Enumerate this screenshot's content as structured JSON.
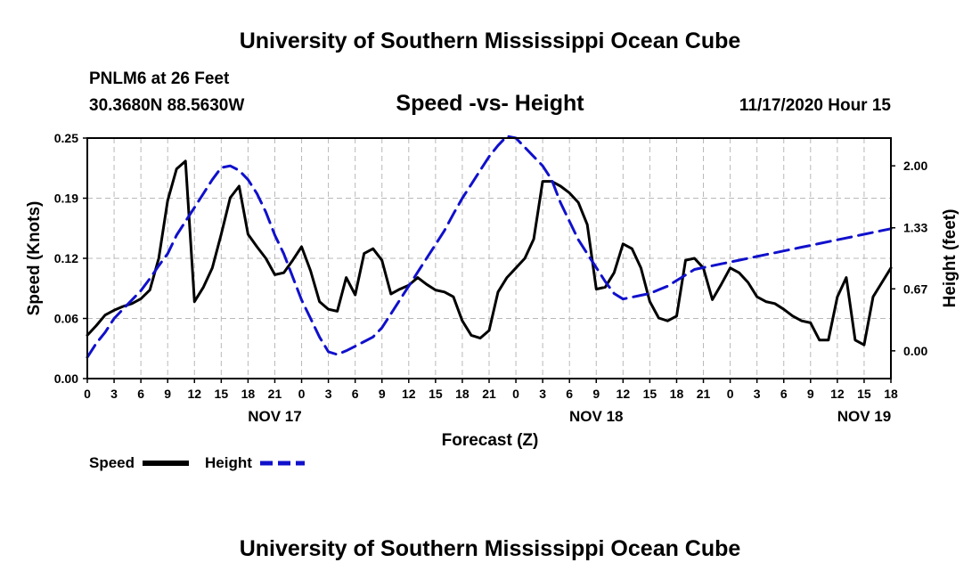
{
  "header": {
    "title": "University of Southern Mississippi Ocean Cube",
    "station": "PNLM6 at 26 Feet",
    "coords": "30.3680N 88.5630W",
    "subtitle": "Speed -vs- Height",
    "datetime": "11/17/2020 Hour 15"
  },
  "footer": {
    "title": "University of Southern Mississippi Ocean Cube"
  },
  "colors": {
    "speed": "#000000",
    "height": "#1010cc",
    "grid": "#b8b8b8"
  },
  "chart_data": {
    "type": "line",
    "title": "Speed -vs- Height",
    "xlabel": "Forecast (Z)",
    "ylabel": "Speed (Knots)",
    "y2label": "Height (feet)",
    "xlim": [
      0,
      90
    ],
    "ylim": [
      0,
      0.25
    ],
    "y2lim": [
      -0.3,
      2.3
    ],
    "grid": true,
    "x_ticks": [
      0,
      3,
      6,
      9,
      12,
      15,
      18,
      21,
      24,
      27,
      30,
      33,
      36,
      39,
      42,
      45,
      48,
      51,
      54,
      57,
      60,
      63,
      66,
      69,
      72,
      75,
      78,
      81,
      84,
      87,
      90
    ],
    "x_tick_labels": [
      "0",
      "3",
      "6",
      "9",
      "12",
      "15",
      "18",
      "21",
      "0",
      "3",
      "6",
      "9",
      "12",
      "15",
      "18",
      "21",
      "0",
      "3",
      "6",
      "9",
      "12",
      "15",
      "18",
      "21",
      "0",
      "3",
      "6",
      "9",
      "12",
      "15",
      "18"
    ],
    "y_ticks": [
      0,
      0.0625,
      0.125,
      0.1875,
      0.25
    ],
    "y_tick_labels": [
      "0.00",
      "0.06",
      "0.12",
      "0.19",
      "0.25"
    ],
    "y2_ticks": [
      0,
      0.67,
      1.33,
      2.0
    ],
    "y2_tick_labels": [
      "0.00",
      "0.67",
      "1.33",
      "2.00"
    ],
    "day_labels": [
      {
        "x": 21,
        "label": "NOV 17"
      },
      {
        "x": 57,
        "label": "NOV 18"
      },
      {
        "x": 87,
        "label": "NOV 19"
      }
    ],
    "series": [
      {
        "name": "Speed",
        "axis": "left",
        "style": "solid",
        "x": [
          0,
          1,
          2,
          3,
          4,
          5,
          6,
          7,
          8,
          9,
          10,
          11,
          12,
          13,
          14,
          15,
          16,
          17,
          18,
          19,
          20,
          21,
          22,
          23,
          24,
          25,
          26,
          27,
          28,
          29,
          30,
          31,
          32,
          33,
          34,
          35,
          36,
          37,
          38,
          39,
          40,
          41,
          42,
          43,
          44,
          45,
          46,
          47,
          48,
          49,
          50,
          51,
          52,
          53,
          54,
          55,
          56,
          57,
          58,
          59,
          60,
          61,
          62,
          63,
          64,
          65,
          66,
          67,
          68,
          69,
          70,
          71,
          72,
          73,
          74,
          75,
          76,
          77,
          78,
          79,
          80,
          81,
          82,
          83,
          84,
          85,
          86,
          87,
          88,
          89,
          90
        ],
        "values": [
          0.045,
          0.055,
          0.066,
          0.071,
          0.075,
          0.078,
          0.083,
          0.092,
          0.125,
          0.185,
          0.218,
          0.226,
          0.08,
          0.095,
          0.115,
          0.15,
          0.188,
          0.2,
          0.15,
          0.137,
          0.125,
          0.108,
          0.11,
          0.123,
          0.137,
          0.112,
          0.08,
          0.072,
          0.07,
          0.105,
          0.087,
          0.13,
          0.135,
          0.123,
          0.088,
          0.093,
          0.097,
          0.105,
          0.098,
          0.092,
          0.09,
          0.085,
          0.06,
          0.045,
          0.042,
          0.05,
          0.09,
          0.105,
          0.115,
          0.125,
          0.145,
          0.205,
          0.205,
          0.2,
          0.193,
          0.183,
          0.16,
          0.093,
          0.095,
          0.11,
          0.14,
          0.135,
          0.115,
          0.08,
          0.063,
          0.06,
          0.065,
          0.123,
          0.125,
          0.115,
          0.082,
          0.098,
          0.115,
          0.11,
          0.1,
          0.085,
          0.08,
          0.078,
          0.072,
          0.065,
          0.06,
          0.058,
          0.04,
          0.04,
          0.085,
          0.105,
          0.04,
          0.035,
          0.085,
          0.1,
          0.115
        ]
      },
      {
        "name": "Height",
        "axis": "right",
        "style": "dashed",
        "x": [
          0,
          1,
          2,
          3,
          4,
          5,
          6,
          7,
          8,
          9,
          10,
          11,
          12,
          13,
          14,
          15,
          16,
          17,
          18,
          19,
          20,
          21,
          22,
          23,
          24,
          25,
          26,
          27,
          28,
          29,
          30,
          31,
          32,
          33,
          34,
          35,
          36,
          37,
          38,
          39,
          40,
          41,
          42,
          43,
          44,
          45,
          46,
          47,
          48,
          49,
          50,
          51,
          52,
          53,
          54,
          55,
          56,
          57,
          58,
          59,
          60,
          61,
          62,
          63,
          64,
          65,
          66,
          67,
          68,
          69,
          70,
          71,
          72,
          73,
          74,
          75,
          76,
          77,
          78,
          79,
          80,
          81,
          82,
          83,
          84,
          85,
          86,
          87,
          88,
          89,
          90
        ],
        "values": [
          -0.07,
          0.08,
          0.2,
          0.35,
          0.45,
          0.55,
          0.65,
          0.78,
          0.92,
          1.05,
          1.25,
          1.4,
          1.55,
          1.7,
          1.85,
          1.98,
          2.0,
          1.95,
          1.85,
          1.7,
          1.5,
          1.25,
          1.05,
          0.8,
          0.55,
          0.35,
          0.15,
          -0.01,
          -0.04,
          0.0,
          0.05,
          0.1,
          0.15,
          0.25,
          0.4,
          0.55,
          0.7,
          0.85,
          1.0,
          1.15,
          1.3,
          1.48,
          1.65,
          1.8,
          1.95,
          2.1,
          2.22,
          2.32,
          2.3,
          2.2,
          2.1,
          2.0,
          1.85,
          1.6,
          1.4,
          1.2,
          1.05,
          0.9,
          0.75,
          0.62,
          0.56,
          0.58,
          0.6,
          0.62,
          0.66,
          0.7,
          0.76,
          0.82,
          0.88,
          0.9,
          0.92,
          0.94,
          0.96,
          0.98,
          1.0,
          1.02,
          1.04,
          1.06,
          1.08,
          1.1,
          1.12,
          1.14,
          1.16,
          1.18,
          1.2,
          1.22,
          1.24,
          1.26,
          1.28,
          1.3,
          1.32
        ]
      }
    ]
  },
  "legend": {
    "speed_label": "Speed",
    "height_label": "Height"
  }
}
